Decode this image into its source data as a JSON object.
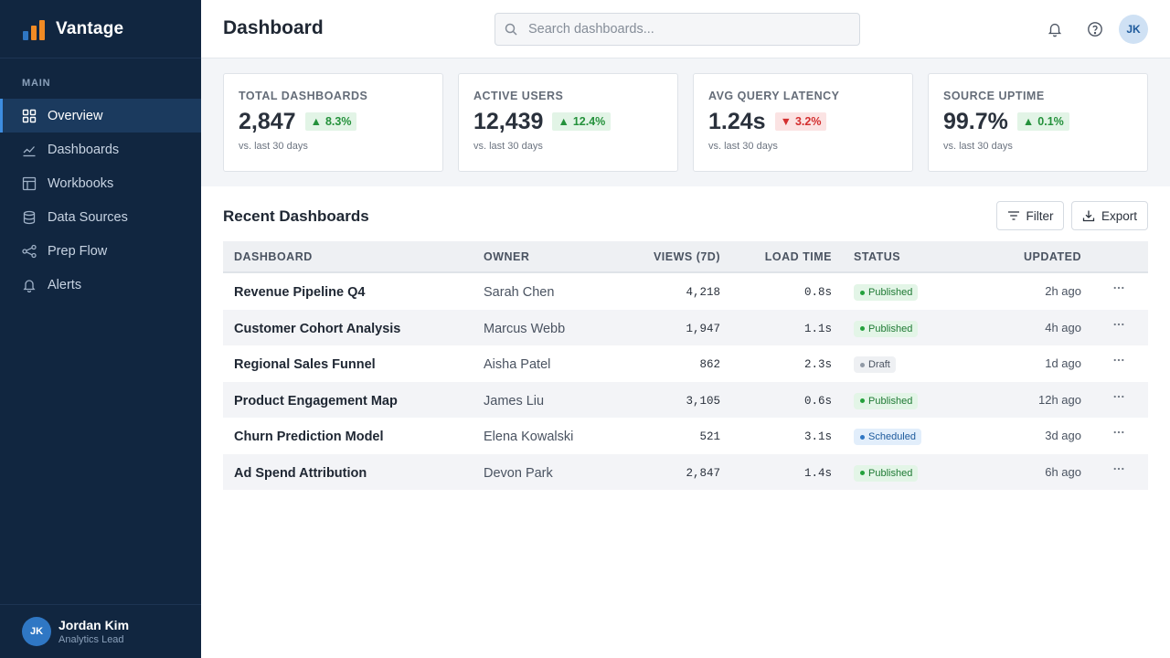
{
  "sidebar": {
    "brand": "Vantage",
    "section_label": "MAIN",
    "items": [
      {
        "label": "Overview"
      },
      {
        "label": "Dashboards"
      },
      {
        "label": "Workbooks"
      },
      {
        "label": "Data Sources"
      },
      {
        "label": "Prep Flow"
      },
      {
        "label": "Alerts"
      }
    ],
    "active_index": 0,
    "user": {
      "initials": "JK",
      "name": "Jordan Kim",
      "role": "Analytics Lead"
    }
  },
  "header": {
    "title": "Dashboard",
    "search_placeholder": "Search dashboards...",
    "icons": [
      "bell-icon",
      "help-icon"
    ],
    "avatar_initials": "JK"
  },
  "kpis": [
    {
      "label": "TOTAL DASHBOARDS",
      "value": "2,847",
      "delta": "8.3%",
      "direction": "up",
      "sub": "vs. last 30 days"
    },
    {
      "label": "ACTIVE USERS",
      "value": "12,439",
      "delta": "12.4%",
      "direction": "up",
      "sub": "vs. last 30 days"
    },
    {
      "label": "AVG QUERY LATENCY",
      "value": "1.24s",
      "delta": "3.2%",
      "direction": "down",
      "sub": "vs. last 30 days"
    },
    {
      "label": "SOURCE UPTIME",
      "value": "99.7%",
      "delta": "0.1%",
      "direction": "up",
      "sub": "vs. last 30 days"
    }
  ],
  "recent": {
    "title": "Recent Dashboards",
    "filter_label": "Filter",
    "export_label": "Export",
    "columns": {
      "dashboard": "DASHBOARD",
      "owner": "OWNER",
      "views": "VIEWS (7D)",
      "load_time": "LOAD TIME",
      "status": "STATUS",
      "updated": "UPDATED"
    },
    "rows": [
      {
        "name": "Revenue Pipeline Q4",
        "owner": "Sarah Chen",
        "views": "4,218",
        "load": "0.8s",
        "status": "Published",
        "updated": "2h ago"
      },
      {
        "name": "Customer Cohort Analysis",
        "owner": "Marcus Webb",
        "views": "1,947",
        "load": "1.1s",
        "status": "Published",
        "updated": "4h ago"
      },
      {
        "name": "Regional Sales Funnel",
        "owner": "Aisha Patel",
        "views": "862",
        "load": "2.3s",
        "status": "Draft",
        "updated": "1d ago"
      },
      {
        "name": "Product Engagement Map",
        "owner": "James Liu",
        "views": "3,105",
        "load": "0.6s",
        "status": "Published",
        "updated": "12h ago"
      },
      {
        "name": "Churn Prediction Model",
        "owner": "Elena Kowalski",
        "views": "521",
        "load": "3.1s",
        "status": "Scheduled",
        "updated": "3d ago"
      },
      {
        "name": "Ad Spend Attribution",
        "owner": "Devon Park",
        "views": "2,847",
        "load": "1.4s",
        "status": "Published",
        "updated": "6h ago"
      }
    ]
  },
  "colors": {
    "sidebar_bg": "#112640",
    "active_item_bg": "#1b3a5e",
    "accent": "#3d8de0",
    "up": "#24913b",
    "down": "#d32f2f",
    "logo_bars": [
      "#2f77c4",
      "#f08a24",
      "#f08a24"
    ]
  }
}
